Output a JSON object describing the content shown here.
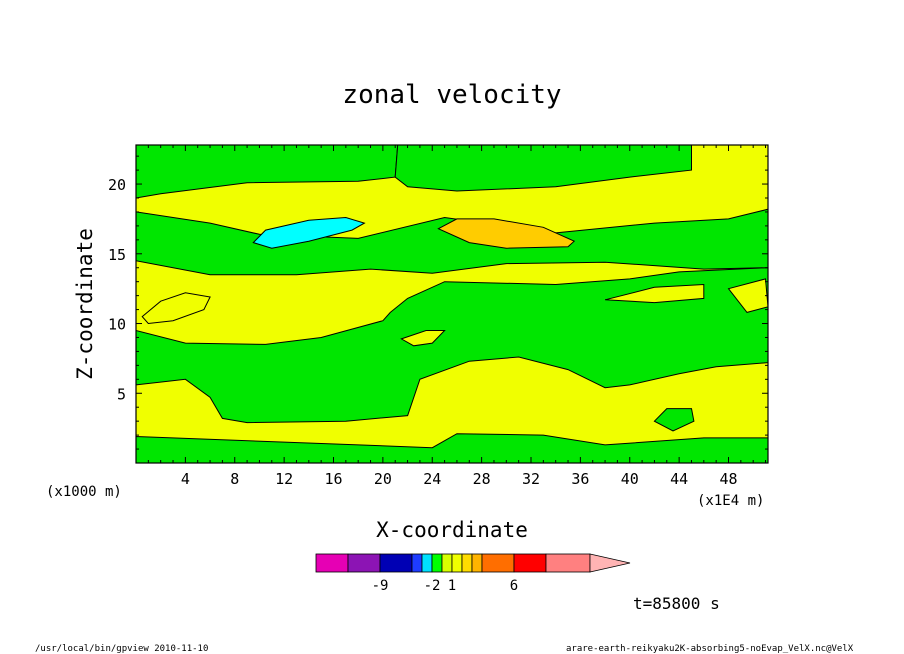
{
  "chart_data": {
    "type": "contour",
    "title": "zonal velocity",
    "xlabel": "X-coordinate",
    "ylabel": "Z-coordinate",
    "x_unit": "(x1000 m)",
    "y_unit": "(x1E4 m)",
    "x_ticks": [
      4,
      8,
      12,
      16,
      20,
      24,
      28,
      32,
      36,
      40,
      44,
      48
    ],
    "y_ticks": [
      5,
      10,
      15,
      20
    ],
    "xlim": [
      0,
      51.2
    ],
    "ylim": [
      0,
      22.8
    ],
    "colorbar": {
      "colors": [
        "#e600b4",
        "#8c14b4",
        "#0000b4",
        "#1e3cff",
        "#00e1ff",
        "#00ff00",
        "#d7ff00",
        "#f0ff00",
        "#ffdc00",
        "#ffb400",
        "#ff6e00",
        "#ff0000",
        "#ff8080"
      ],
      "extend_color": "#ffb4b4",
      "tick_labels": [
        {
          "label": "-9",
          "at_box": 1
        },
        {
          "label": "-2",
          "at_box": 4
        },
        {
          "label": "1",
          "at_box": 6
        },
        {
          "label": "6",
          "at_box": 10
        }
      ]
    },
    "regions": [
      {
        "fill": "#00e600",
        "level": "green",
        "path": [
          [
            0,
            22.8
          ],
          [
            21.2,
            22.8
          ],
          [
            21.0,
            20.5
          ],
          [
            18.0,
            20.2
          ],
          [
            9.0,
            20.1
          ],
          [
            2.0,
            19.3
          ],
          [
            0,
            19.0
          ]
        ]
      },
      {
        "fill": "#00e600",
        "level": "green",
        "path": [
          [
            21.2,
            22.8
          ],
          [
            45.0,
            22.8
          ],
          [
            45.0,
            21.0
          ],
          [
            40.0,
            20.5
          ],
          [
            34.0,
            19.8
          ],
          [
            26.0,
            19.5
          ],
          [
            22.0,
            19.8
          ],
          [
            21.0,
            20.5
          ]
        ]
      },
      {
        "fill": "#00e600",
        "level": "green",
        "path": [
          [
            0,
            18.0
          ],
          [
            6.0,
            17.2
          ],
          [
            10.0,
            16.4
          ],
          [
            18.0,
            16.1
          ],
          [
            25.0,
            17.6
          ],
          [
            34.0,
            16.5
          ],
          [
            42.0,
            17.2
          ],
          [
            48.0,
            17.5
          ],
          [
            51.2,
            18.2
          ],
          [
            51.2,
            14.0
          ],
          [
            46.0,
            13.9
          ],
          [
            38.0,
            14.4
          ],
          [
            30.0,
            14.3
          ],
          [
            24.0,
            13.6
          ],
          [
            19.0,
            13.9
          ],
          [
            13.0,
            13.5
          ],
          [
            6.0,
            13.5
          ],
          [
            0,
            14.5
          ]
        ]
      },
      {
        "fill": "#00e600",
        "level": "green",
        "path": [
          [
            20.6,
            10.8
          ],
          [
            22.0,
            11.8
          ],
          [
            25.0,
            13.0
          ],
          [
            34.0,
            12.8
          ],
          [
            40.0,
            13.2
          ],
          [
            44.0,
            13.7
          ],
          [
            51.2,
            14.0
          ],
          [
            51.2,
            7.2
          ],
          [
            47.0,
            6.9
          ],
          [
            44.0,
            6.4
          ],
          [
            40.0,
            5.6
          ],
          [
            38.0,
            5.4
          ],
          [
            35.0,
            6.7
          ],
          [
            31.0,
            7.6
          ],
          [
            27.0,
            7.3
          ],
          [
            23.0,
            6.0
          ],
          [
            22.0,
            3.4
          ],
          [
            17.0,
            3.0
          ],
          [
            9.0,
            2.9
          ],
          [
            7.0,
            3.2
          ],
          [
            6.0,
            4.7
          ],
          [
            4.0,
            6.0
          ],
          [
            0,
            5.6
          ],
          [
            0,
            9.5
          ],
          [
            4.0,
            8.6
          ],
          [
            10.5,
            8.5
          ],
          [
            15.0,
            9.0
          ],
          [
            20.0,
            10.2
          ]
        ]
      },
      {
        "fill": "#00e600",
        "level": "green",
        "path": [
          [
            0,
            0
          ],
          [
            51.2,
            0
          ],
          [
            51.2,
            1.8
          ],
          [
            46.0,
            1.8
          ],
          [
            38.0,
            1.3
          ],
          [
            33.0,
            2.0
          ],
          [
            26.0,
            2.1
          ],
          [
            24.0,
            1.1
          ],
          [
            0,
            1.9
          ]
        ]
      },
      {
        "fill": "#f0ff00",
        "level": "yellow",
        "path": [
          [
            0.5,
            10.5
          ],
          [
            2.0,
            11.6
          ],
          [
            4.0,
            12.2
          ],
          [
            6.0,
            11.9
          ],
          [
            5.5,
            11.0
          ],
          [
            3.0,
            10.2
          ],
          [
            1.0,
            10.0
          ]
        ]
      },
      {
        "fill": "#f0ff00",
        "level": "yellow",
        "path": [
          [
            38.0,
            11.7
          ],
          [
            42.0,
            12.6
          ],
          [
            46.0,
            12.8
          ],
          [
            46.0,
            11.8
          ],
          [
            42.0,
            11.5
          ]
        ]
      },
      {
        "fill": "#f0ff00",
        "level": "yellow",
        "path": [
          [
            48.0,
            12.5
          ],
          [
            51.0,
            13.2
          ],
          [
            51.2,
            11.2
          ],
          [
            49.5,
            10.8
          ]
        ]
      },
      {
        "fill": "#f0ff00",
        "level": "yellow",
        "path": [
          [
            21.5,
            8.9
          ],
          [
            23.5,
            9.5
          ],
          [
            25.0,
            9.5
          ],
          [
            24.0,
            8.6
          ],
          [
            22.5,
            8.4
          ]
        ]
      },
      {
        "fill": "#00e600",
        "level": "green",
        "path": [
          [
            42.0,
            3.0
          ],
          [
            43.0,
            3.9
          ],
          [
            45.0,
            3.9
          ],
          [
            45.2,
            3.0
          ],
          [
            43.5,
            2.3
          ]
        ]
      },
      {
        "fill": "#00ffff",
        "level": "cyan",
        "path": [
          [
            9.5,
            15.8
          ],
          [
            10.5,
            16.7
          ],
          [
            14.0,
            17.4
          ],
          [
            17.0,
            17.6
          ],
          [
            18.5,
            17.2
          ],
          [
            17.5,
            16.7
          ],
          [
            14.0,
            15.9
          ],
          [
            11.0,
            15.4
          ]
        ]
      },
      {
        "fill": "#ffcc00",
        "level": "orange",
        "path": [
          [
            24.5,
            16.8
          ],
          [
            26.0,
            17.5
          ],
          [
            29.0,
            17.5
          ],
          [
            33.0,
            16.9
          ],
          [
            35.5,
            15.9
          ],
          [
            35.0,
            15.5
          ],
          [
            30.0,
            15.4
          ],
          [
            27.0,
            15.8
          ]
        ]
      }
    ]
  },
  "footer": {
    "left": "/usr/local/bin/gpview  2010-11-10",
    "right": "arare-earth-reikyaku2K-absorbing5-noEvap_VelX.nc@VelX",
    "time": "t=85800 s"
  }
}
